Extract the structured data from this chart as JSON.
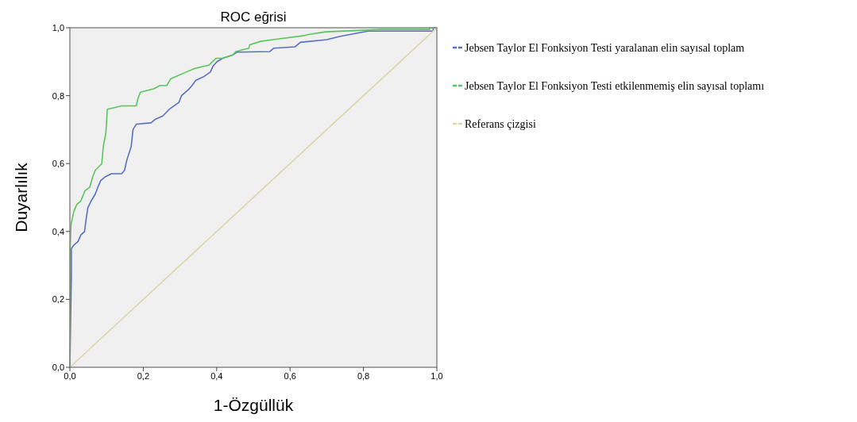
{
  "chart_data": {
    "type": "line",
    "title": "ROC eğrisi",
    "xlabel": "1-Özgüllük",
    "ylabel": "Duyarlılık",
    "xlim": [
      0,
      1
    ],
    "ylim": [
      0,
      1
    ],
    "xticks": [
      {
        "value": 0,
        "label": "0,0"
      },
      {
        "value": 0.2,
        "label": "0,2"
      },
      {
        "value": 0.4,
        "label": "0,4"
      },
      {
        "value": 0.6,
        "label": "0,6"
      },
      {
        "value": 0.8,
        "label": "0,8"
      },
      {
        "value": 1,
        "label": "1,0"
      }
    ],
    "yticks": [
      {
        "value": 0,
        "label": "0,0"
      },
      {
        "value": 0.2,
        "label": "0,2"
      },
      {
        "value": 0.4,
        "label": "0,4"
      },
      {
        "value": 0.6,
        "label": "0,6"
      },
      {
        "value": 0.8,
        "label": "0,8"
      },
      {
        "value": 1,
        "label": "1,0"
      }
    ],
    "grid": false,
    "legend": "right",
    "marker": "none",
    "line_style": "solid",
    "series": [
      {
        "name": "Jebsen Taylor El Fonksiyon Testi yaralanan elin sayısal toplam",
        "color": "#5a6fc0",
        "x": [
          0,
          0.004,
          0.004,
          0.011,
          0.022,
          0.03,
          0.04,
          0.044,
          0.049,
          0.058,
          0.069,
          0.076,
          0.084,
          0.095,
          0.113,
          0.141,
          0.149,
          0.155,
          0.167,
          0.172,
          0.181,
          0.221,
          0.232,
          0.253,
          0.271,
          0.297,
          0.304,
          0.325,
          0.333,
          0.343,
          0.365,
          0.383,
          0.39,
          0.401,
          0.416,
          0.444,
          0.455,
          0.545,
          0.556,
          0.614,
          0.628,
          0.7,
          0.737,
          0.812,
          0.99,
          0.99,
          1
        ],
        "values": [
          0,
          0.27,
          0.35,
          0.36,
          0.37,
          0.39,
          0.4,
          0.435,
          0.47,
          0.49,
          0.51,
          0.53,
          0.55,
          0.56,
          0.57,
          0.57,
          0.58,
          0.61,
          0.65,
          0.7,
          0.716,
          0.72,
          0.73,
          0.74,
          0.76,
          0.78,
          0.8,
          0.82,
          0.83,
          0.845,
          0.856,
          0.87,
          0.887,
          0.9,
          0.91,
          0.92,
          0.928,
          0.93,
          0.94,
          0.944,
          0.957,
          0.965,
          0.975,
          0.99,
          0.99,
          1,
          1
        ]
      },
      {
        "name": "Jebsen Taylor El Fonksiyon Testi etkilenmemiş elin sayısal toplamı",
        "color": "#5cc45c",
        "x": [
          0,
          0,
          0.003,
          0.011,
          0.019,
          0.03,
          0.041,
          0.054,
          0.062,
          0.069,
          0.087,
          0.091,
          0.098,
          0.102,
          0.141,
          0.181,
          0.185,
          0.192,
          0.228,
          0.246,
          0.264,
          0.275,
          0.318,
          0.34,
          0.379,
          0.398,
          0.416,
          0.444,
          0.452,
          0.488,
          0.49,
          0.52,
          0.553,
          0.639,
          0.65,
          0.697,
          0.852,
          0.98,
          0.98,
          1
        ],
        "values": [
          0,
          0.32,
          0.42,
          0.46,
          0.48,
          0.49,
          0.52,
          0.53,
          0.56,
          0.58,
          0.6,
          0.65,
          0.69,
          0.76,
          0.77,
          0.77,
          0.79,
          0.81,
          0.82,
          0.83,
          0.83,
          0.85,
          0.87,
          0.88,
          0.89,
          0.91,
          0.91,
          0.92,
          0.93,
          0.94,
          0.95,
          0.96,
          0.965,
          0.977,
          0.98,
          0.988,
          0.995,
          0.995,
          1,
          1
        ]
      },
      {
        "name": "Referans çizgisi",
        "color": "#d9d6a8",
        "x": [
          0,
          1
        ],
        "values": [
          0,
          1
        ]
      }
    ]
  }
}
